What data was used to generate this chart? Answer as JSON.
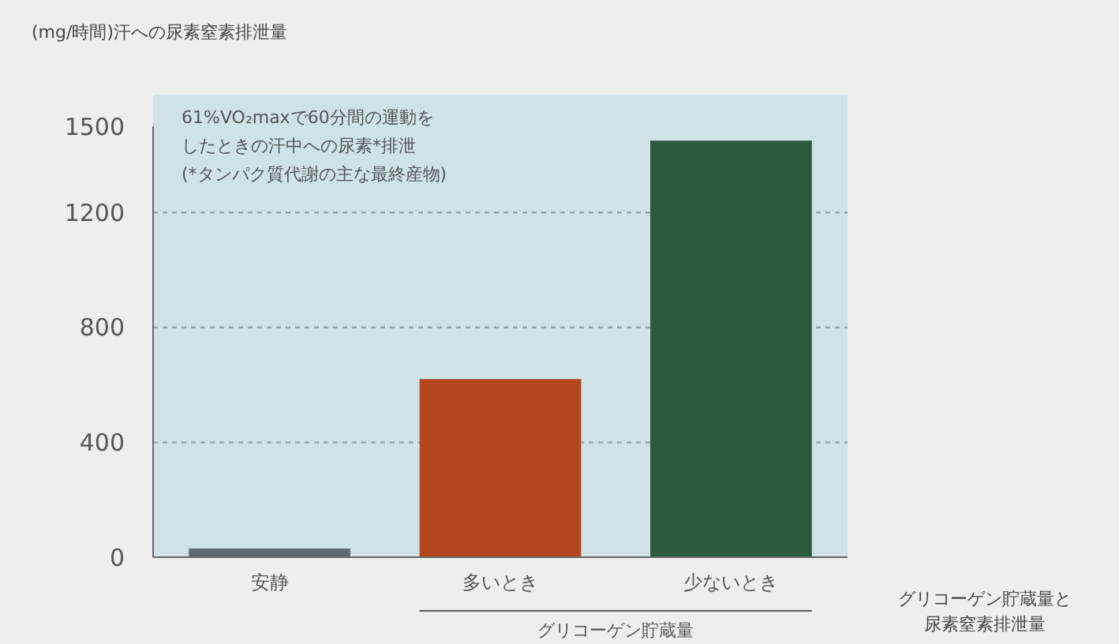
{
  "chart_data": {
    "type": "bar",
    "ylabel": "(mg/時間)汗への尿素窒素排泄量",
    "categories": [
      "安静",
      "多いとき",
      "少ないとき"
    ],
    "values": [
      30,
      620,
      1450
    ],
    "colors": [
      "#5b6b70",
      "#b3461f",
      "#2b5a3c"
    ],
    "ylim": [
      0,
      1500
    ],
    "yticks": [
      0,
      400,
      800,
      1200,
      1500
    ],
    "grid": "y",
    "annotations": [
      "61%VO₂maxで60分間の運動をしたときの汗中への尿素*排泄(*タンパク質代謝の主な最終産物)",
      "グリコーゲン貯蔵量",
      "グリコーゲン貯蔵量と尿素窒素排泄量"
    ]
  }
}
